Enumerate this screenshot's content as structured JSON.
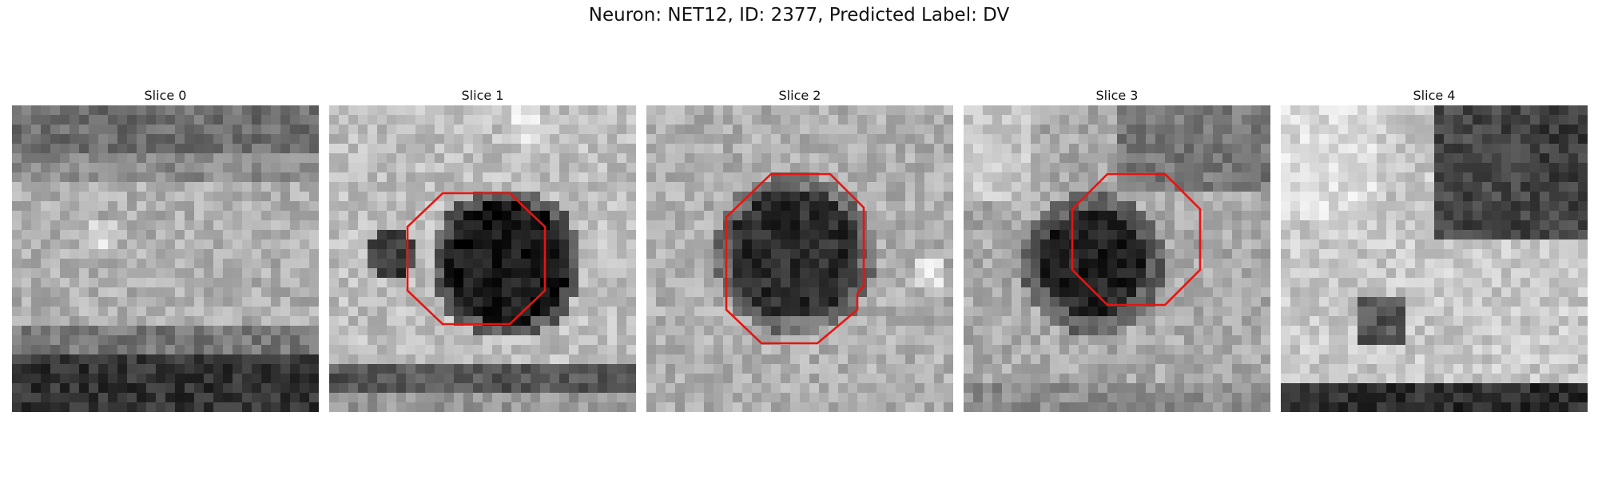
{
  "figure": {
    "title": "Neuron: NET12, ID: 2377, Predicted Label: DV",
    "roi_color": "#e8140f"
  },
  "slices": [
    {
      "label": "Slice 0",
      "has_roi": false,
      "texture": "band"
    },
    {
      "label": "Slice 1",
      "has_roi": true,
      "texture": "blob"
    },
    {
      "label": "Slice 2",
      "has_roi": true,
      "texture": "blob"
    },
    {
      "label": "Slice 3",
      "has_roi": true,
      "texture": "blob"
    },
    {
      "label": "Slice 4",
      "has_roi": false,
      "texture": "edge"
    }
  ]
}
